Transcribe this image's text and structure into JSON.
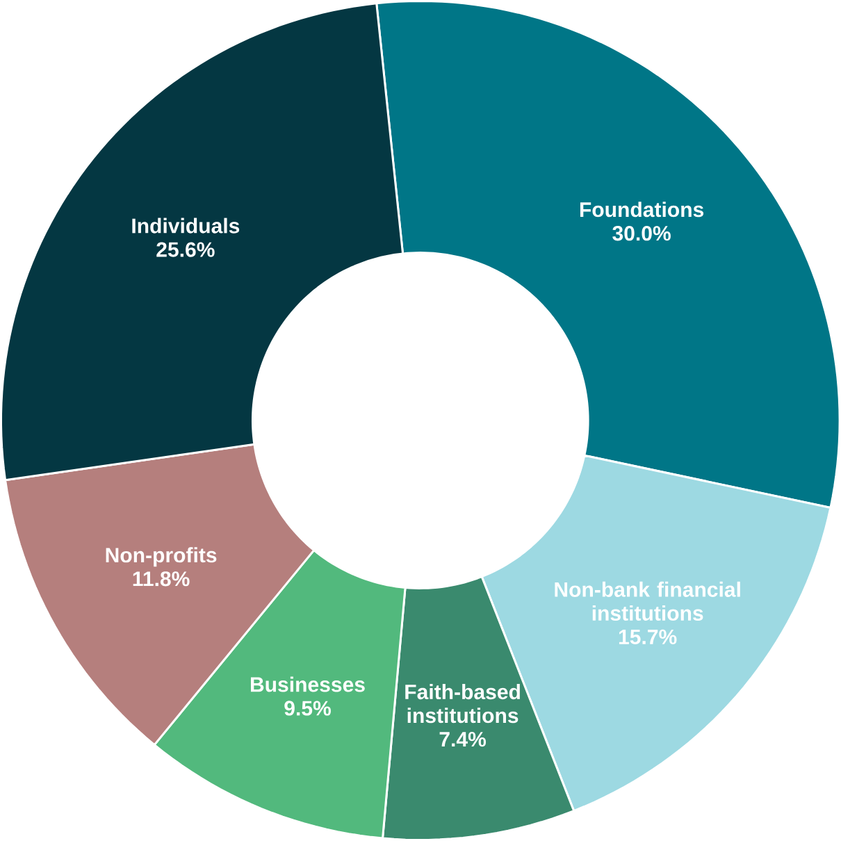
{
  "chart_data": {
    "type": "donut",
    "categories": [
      "Foundations",
      "Non-bank financial institutions",
      "Faith-based institutions",
      "Businesses",
      "Non-profits",
      "Individuals"
    ],
    "values": [
      30.0,
      15.7,
      7.4,
      9.5,
      11.8,
      25.6
    ],
    "value_labels": [
      "30.0%",
      "15.7%",
      "7.4%",
      "9.5%",
      "11.8%",
      "25.6%"
    ],
    "colors": [
      "#007687",
      "#9dd9e2",
      "#3a8a6e",
      "#52b97d",
      "#b57f7d",
      "#043742"
    ]
  }
}
